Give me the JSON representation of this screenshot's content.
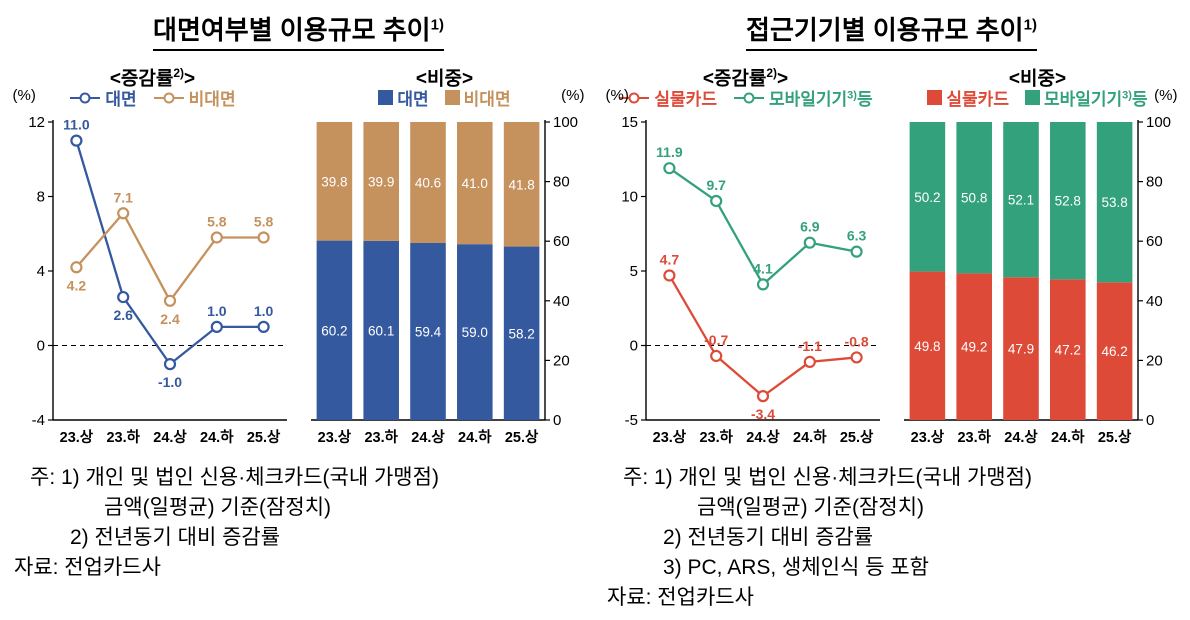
{
  "page": {
    "background": "#ffffff"
  },
  "panels": [
    {
      "title": "대면여부별 이용규모 추이",
      "title_sup": "1)",
      "notes": [
        "주: 1) 개인 및 법인 신용·체크카드(국내 가맹점)",
        "금액(일평균) 기준(잠정치)",
        "2) 전년동기 대비 증감률",
        "자료: 전업카드사"
      ]
    },
    {
      "title": "접근기기별 이용규모 추이",
      "title_sup": "1)",
      "notes": [
        "주: 1) 개인 및 법인 신용·체크카드(국내 가맹점)",
        "금액(일평균) 기준(잠정치)",
        "2) 전년동기 대비 증감률",
        "3) PC, ARS, 생체인식 등 포함",
        "자료: 전업카드사"
      ]
    }
  ],
  "chart_data": [
    {
      "id": "face-growth",
      "type": "line",
      "header": {
        "pre": "<증감률",
        "sup": "2)",
        "post": ">"
      },
      "unit": "(%)",
      "unit_side": "left",
      "axis_side": "left",
      "categories": [
        "23.상",
        "23.하",
        "24.상",
        "24.하",
        "25.상"
      ],
      "series": [
        {
          "name": "대면",
          "name_parts": [
            "대면",
            "",
            ""
          ],
          "color": "#35599f",
          "values": [
            11.0,
            2.6,
            -1.0,
            1.0,
            1.0
          ],
          "label_side": [
            "above",
            "below",
            "below",
            "above",
            "above"
          ]
        },
        {
          "name": "비대면",
          "name_parts": [
            "비대면",
            "",
            ""
          ],
          "color": "#c5915c",
          "values": [
            4.2,
            7.1,
            2.4,
            5.8,
            5.8
          ],
          "label_side": [
            "below",
            "above",
            "below",
            "above",
            "above"
          ]
        }
      ],
      "ylim": [
        -4,
        12
      ],
      "yticks": [
        -4,
        0,
        4,
        8,
        12
      ],
      "zero_line": true,
      "grid": false,
      "legend_position": "top"
    },
    {
      "id": "face-share",
      "type": "stacked-bar",
      "header": {
        "pre": "<비중",
        "sup": "",
        "post": ">"
      },
      "unit": "(%)",
      "unit_side": "right",
      "axis_side": "right",
      "categories": [
        "23.상",
        "23.하",
        "24.상",
        "24.하",
        "25.상"
      ],
      "series": [
        {
          "name": "대면",
          "name_parts": [
            "대면",
            "",
            ""
          ],
          "color": "#35599f",
          "values": [
            60.2,
            60.1,
            59.4,
            59.0,
            58.2
          ]
        },
        {
          "name": "비대면",
          "name_parts": [
            "비대면",
            "",
            ""
          ],
          "color": "#c5915c",
          "values": [
            39.8,
            39.9,
            40.6,
            41.0,
            41.8
          ]
        }
      ],
      "ylim": [
        0,
        100
      ],
      "yticks": [
        0,
        20,
        40,
        60,
        80,
        100
      ],
      "grid": false,
      "legend_position": "top"
    },
    {
      "id": "device-growth",
      "type": "line",
      "header": {
        "pre": "<증감률",
        "sup": "2)",
        "post": ">"
      },
      "unit": "(%)",
      "unit_side": "left",
      "axis_side": "left",
      "categories": [
        "23.상",
        "23.하",
        "24.상",
        "24.하",
        "25.상"
      ],
      "series": [
        {
          "name": "실물카드",
          "name_parts": [
            "실물카드",
            "",
            ""
          ],
          "color": "#dd4a38",
          "values": [
            4.7,
            -0.7,
            -3.4,
            -1.1,
            -0.8
          ],
          "label_side": [
            "above",
            "above",
            "below",
            "above",
            "above"
          ]
        },
        {
          "name": "모바일기기3)등",
          "name_parts": [
            "모바일기기",
            "3)",
            "등"
          ],
          "color": "#33a17c",
          "values": [
            11.9,
            9.7,
            4.1,
            6.9,
            6.3
          ],
          "label_side": [
            "above",
            "above",
            "above",
            "above",
            "above"
          ]
        }
      ],
      "ylim": [
        -5,
        15
      ],
      "yticks": [
        -5,
        0,
        5,
        10,
        15
      ],
      "zero_line": true,
      "grid": false,
      "legend_position": "top"
    },
    {
      "id": "device-share",
      "type": "stacked-bar",
      "header": {
        "pre": "<비중",
        "sup": "",
        "post": ">"
      },
      "unit": "(%)",
      "unit_side": "right",
      "axis_side": "right",
      "categories": [
        "23.상",
        "23.하",
        "24.상",
        "24.하",
        "25.상"
      ],
      "series": [
        {
          "name": "실물카드",
          "name_parts": [
            "실물카드",
            "",
            ""
          ],
          "color": "#dd4a38",
          "values": [
            49.8,
            49.2,
            47.9,
            47.2,
            46.2
          ]
        },
        {
          "name": "모바일기기3)등",
          "name_parts": [
            "모바일기기",
            "3)",
            "등"
          ],
          "color": "#33a17c",
          "values": [
            50.2,
            50.8,
            52.1,
            52.8,
            53.8
          ]
        }
      ],
      "ylim": [
        0,
        100
      ],
      "yticks": [
        0,
        20,
        40,
        60,
        80,
        100
      ],
      "grid": false,
      "legend_position": "top"
    }
  ]
}
